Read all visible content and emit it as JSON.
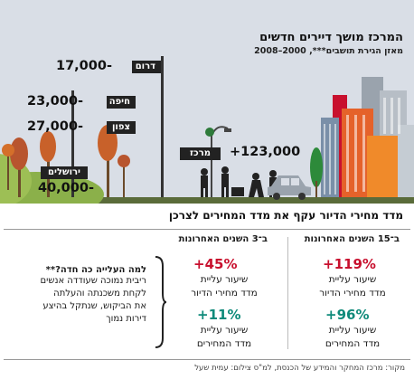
{
  "header": {
    "title": "המרכז מושך דיירים חדשים",
    "subtitle": "מאזן הגירת תושבים***, 2000–2008"
  },
  "regions": [
    {
      "name": "דרום",
      "value": "17,000-"
    },
    {
      "name": "חיפה",
      "value": "23,000-"
    },
    {
      "name": "צפון",
      "value": "27,000-"
    },
    {
      "name": "ירושלים",
      "value": "40,000-"
    },
    {
      "name": "מרכז",
      "value": "+123,000"
    }
  ],
  "section": {
    "title": "מדד מחירי הדיור עקף את מדד המחירים לצרכן"
  },
  "columns": [
    {
      "heading": "ב־15 השנים האחרונות",
      "stat1": {
        "value": "+119%",
        "label1": "שיעור עליית",
        "label2": "מדד מחירי הדיור"
      },
      "stat2": {
        "value": "+96%",
        "label1": "שיעור עליית",
        "label2": "מדד המחירים"
      }
    },
    {
      "heading": "ב־3 השנים האחרונות",
      "stat1": {
        "value": "+45%",
        "label1": "שיעור עליית",
        "label2": "מדד מחירי הדיור"
      },
      "stat2": {
        "value": "+11%",
        "label1": "שיעור עליית",
        "label2": "מדד המחירים"
      }
    }
  ],
  "note": {
    "title": "למה העלייה כה חדה?**",
    "lines": [
      "ריבית נמוכה שעודדה אנשים",
      "לקחת משכנתה והעלתה",
      "את הביקוש, שנתקל בהיצע",
      "דירות נמוך"
    ]
  },
  "source": "מקור: מרכז המחקר והמידע של הכנסת, למ\"ס   צילום: עמית שעל",
  "colors": {
    "accent_red": "#c8102e",
    "accent_teal": "#0f8a7a",
    "sky": "#d9dee6"
  }
}
